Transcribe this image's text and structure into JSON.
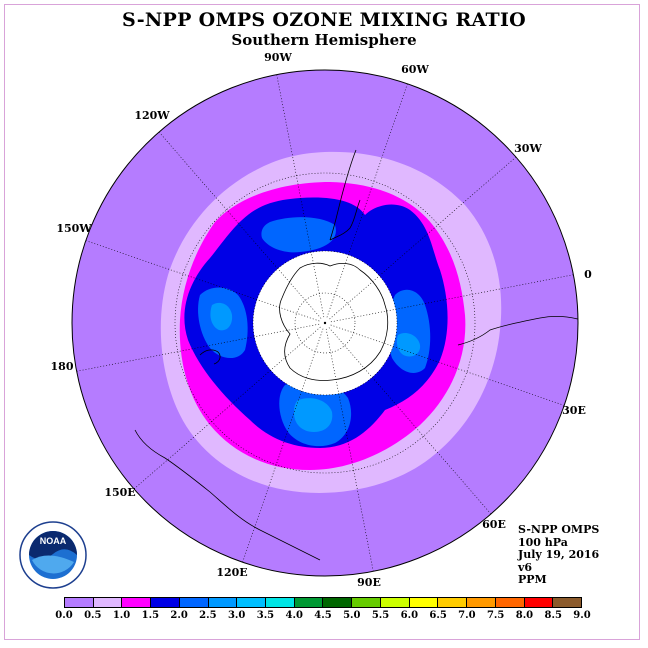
{
  "title": "S-NPP OMPS OZONE MIXING RATIO",
  "subtitle": "Southern Hemisphere",
  "longitude_labels": [
    "90W",
    "60W",
    "30W",
    "0",
    "30E",
    "60E",
    "90E",
    "120E",
    "150E",
    "180",
    "150W",
    "120W"
  ],
  "info": {
    "instrument": "S-NPP OMPS",
    "level": "100 hPa",
    "date": "July 19, 2016",
    "version": "v6",
    "units": "PPM"
  },
  "colorbar": {
    "ticks": [
      "0.0",
      "0.5",
      "1.0",
      "1.5",
      "2.0",
      "2.5",
      "3.0",
      "3.5",
      "4.0",
      "4.5",
      "5.0",
      "5.5",
      "6.0",
      "6.5",
      "7.0",
      "7.5",
      "8.0",
      "8.5",
      "9.0"
    ],
    "colors": [
      "#b57cff",
      "#e0b8ff",
      "#ff00ff",
      "#0000e6",
      "#0066ff",
      "#0099ff",
      "#00bfff",
      "#00e5e5",
      "#009933",
      "#006600",
      "#66cc00",
      "#ccff00",
      "#ffff00",
      "#ffcc00",
      "#ff9900",
      "#ff6600",
      "#ff0000",
      "#8b5a2b"
    ]
  },
  "map_colors": {
    "background": "#b57cff",
    "band_0_5": "#e0b8ff",
    "band_1_0": "#ff00ff",
    "band_1_5": "#0000e6",
    "band_2_0": "#0066ff",
    "band_2_5": "#0099ff",
    "no_data": "#ffffff"
  },
  "logo_text": "NOAA"
}
